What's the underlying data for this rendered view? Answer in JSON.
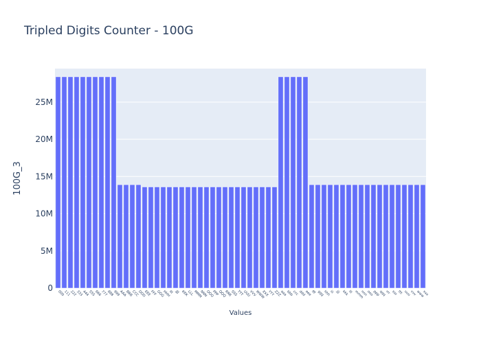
{
  "chart_data": {
    "type": "bar",
    "title": "Tripled Digits Counter - 100G",
    "xlabel": "Values",
    "ylabel": "100G_3",
    "ylim": [
      0,
      29500000
    ],
    "yticks": [
      {
        "value": 0,
        "label": "0"
      },
      {
        "value": 5000000,
        "label": "5M"
      },
      {
        "value": 10000000,
        "label": "10M"
      },
      {
        "value": 15000000,
        "label": "15M"
      },
      {
        "value": 20000000,
        "label": "20M"
      },
      {
        "value": 25000000,
        "label": "25M"
      }
    ],
    "grid": true,
    "bar_color": "#636efa",
    "plot_bg": "#e5ecf6",
    "categories": [
      "000",
      "111",
      "222",
      "333",
      "444",
      "555",
      "666",
      "777",
      "888",
      "999",
      "AAA",
      "BBB",
      "CCC",
      "DDD",
      "EEE",
      "FFF",
      "GGG",
      "HHH",
      "III",
      "JJJ",
      "KKK",
      "LLL",
      "MMM",
      "NNN",
      "OOO",
      "PPP",
      "QQQ",
      "RRR",
      "SSS",
      "TTT",
      "UUU",
      "VVV",
      "WWW",
      "XXX",
      "YYY",
      "ZZZ",
      "aaa",
      "bbb",
      "ccc",
      "ddd",
      "eee",
      "fff",
      "ggg",
      "hhh",
      "iii",
      "jjj",
      "kkk",
      "lll",
      "mmm",
      "nnn",
      "ooo",
      "ppp",
      "qqq",
      "rrr",
      "sss",
      "ttt",
      "uuu",
      "vvv",
      "www",
      "xxx"
    ],
    "values": [
      28400000,
      28400000,
      28400000,
      28400000,
      28400000,
      28400000,
      28400000,
      28400000,
      28400000,
      28400000,
      13900000,
      13900000,
      13900000,
      13900000,
      13600000,
      13600000,
      13600000,
      13600000,
      13600000,
      13600000,
      13600000,
      13600000,
      13600000,
      13600000,
      13600000,
      13600000,
      13600000,
      13600000,
      13600000,
      13600000,
      13600000,
      13600000,
      13600000,
      13600000,
      13600000,
      13600000,
      28400000,
      28400000,
      28400000,
      28400000,
      28400000,
      13900000,
      13900000,
      13900000,
      13900000,
      13900000,
      13900000,
      13900000,
      13900000,
      13900000,
      13900000,
      13900000,
      13900000,
      13900000,
      13900000,
      13900000,
      13900000,
      13900000,
      13900000,
      13900000
    ]
  }
}
